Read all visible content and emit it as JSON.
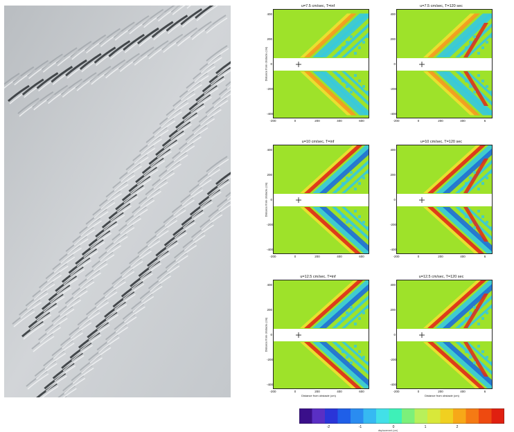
{
  "photo": {
    "icon": "cloud-wave-satellite-photo"
  },
  "panels": [
    {
      "title": "u=7.5 cm/sec, T=inf"
    },
    {
      "title": "u=7.5 cm/sec, T=120 sec"
    },
    {
      "title": "u=10 cm/sec, T=inf"
    },
    {
      "title": "u=10 cm/sec, T=120 sec"
    },
    {
      "title": "u=12.5 cm/sec, T=inf"
    },
    {
      "title": "u=12.5 cm/sec, T=120 sec"
    }
  ],
  "axes": {
    "ylabel": "Distance from obstacle (cm)",
    "xlabel": "Distance from obstacle (cm)",
    "yticks": [
      "400",
      "200",
      "0",
      "-200",
      "-400"
    ],
    "xticks": [
      "-200",
      "0",
      "200",
      "400",
      "600"
    ],
    "xticks_right": [
      "-200",
      "0",
      "200",
      "400",
      "6"
    ]
  },
  "colorbar": {
    "ticks": [
      "-2",
      "-1",
      "0",
      "1",
      "2"
    ],
    "caption": "displacement (cm)",
    "colors": [
      "#3a0f8a",
      "#5a2fc4",
      "#2a35d8",
      "#1f5fe8",
      "#2a8cf0",
      "#36b9f2",
      "#42e0e8",
      "#3ef0b8",
      "#7cf07a",
      "#b8f05a",
      "#d8e83a",
      "#f0d020",
      "#f7a818",
      "#f57a14",
      "#ee4a10",
      "#e02010"
    ]
  },
  "colors": {
    "field": "#9ee22a",
    "cyan": "#35c9e0",
    "blue": "#1e6fd8",
    "yellow": "#f0e030",
    "orange": "#f59a20",
    "red": "#e02a18",
    "gap": "#ffffff"
  }
}
